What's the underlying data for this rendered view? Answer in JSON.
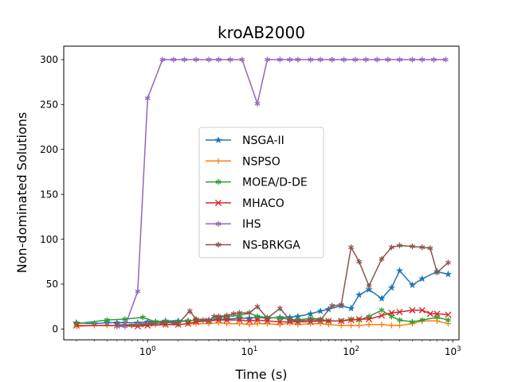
{
  "chart_data": {
    "type": "line",
    "title": "kroAB2000",
    "xlabel": "Time (s)",
    "ylabel": "Non-dominated Solutions",
    "xscale": "log",
    "xlim": [
      0.15,
      1150
    ],
    "ylim": [
      -12,
      315
    ],
    "x_ticks": [
      1,
      10,
      100,
      1000
    ],
    "x_tick_labels": [
      {
        "base": "10",
        "exp": "0"
      },
      {
        "base": "10",
        "exp": "1"
      },
      {
        "base": "10",
        "exp": "2"
      },
      {
        "base": "10",
        "exp": "3"
      }
    ],
    "y_ticks": [
      0,
      50,
      100,
      150,
      200,
      250,
      300
    ],
    "legend_position": "center",
    "grid": false,
    "series": [
      {
        "name": "NSGA-II",
        "color": "#1f77b4",
        "marker": "star",
        "points": [
          [
            0.2,
            7
          ],
          [
            0.3,
            6
          ],
          [
            0.4,
            7
          ],
          [
            0.5,
            7
          ],
          [
            0.6,
            7
          ],
          [
            0.8,
            7
          ],
          [
            1.0,
            8
          ],
          [
            1.2,
            8
          ],
          [
            1.5,
            9
          ],
          [
            2.0,
            9
          ],
          [
            2.5,
            9
          ],
          [
            3.0,
            10
          ],
          [
            4.0,
            10
          ],
          [
            5.0,
            11
          ],
          [
            6.0,
            11
          ],
          [
            8.0,
            12
          ],
          [
            10,
            12
          ],
          [
            12,
            13
          ],
          [
            15,
            12
          ],
          [
            20,
            13
          ],
          [
            25,
            13
          ],
          [
            30,
            14
          ],
          [
            40,
            17
          ],
          [
            50,
            20
          ],
          [
            60,
            22
          ],
          [
            80,
            26
          ],
          [
            100,
            23
          ],
          [
            120,
            38
          ],
          [
            150,
            44
          ],
          [
            200,
            34
          ],
          [
            250,
            46
          ],
          [
            300,
            65
          ],
          [
            400,
            49
          ],
          [
            500,
            56
          ],
          [
            700,
            64
          ],
          [
            900,
            61
          ]
        ]
      },
      {
        "name": "NSPSO",
        "color": "#ff7f0e",
        "marker": "plus",
        "points": [
          [
            0.2,
            3
          ],
          [
            0.3,
            4
          ],
          [
            0.4,
            4
          ],
          [
            0.5,
            4
          ],
          [
            0.6,
            5
          ],
          [
            0.8,
            5
          ],
          [
            1.0,
            5
          ],
          [
            1.2,
            5
          ],
          [
            1.5,
            5
          ],
          [
            2.0,
            5
          ],
          [
            2.5,
            6
          ],
          [
            3.0,
            6
          ],
          [
            4.0,
            6
          ],
          [
            5.0,
            7
          ],
          [
            6.0,
            6
          ],
          [
            8.0,
            6
          ],
          [
            10,
            5
          ],
          [
            12,
            6
          ],
          [
            15,
            6
          ],
          [
            20,
            5
          ],
          [
            25,
            7
          ],
          [
            30,
            5
          ],
          [
            40,
            6
          ],
          [
            50,
            6
          ],
          [
            60,
            5
          ],
          [
            80,
            4
          ],
          [
            100,
            4
          ],
          [
            120,
            4
          ],
          [
            150,
            5
          ],
          [
            200,
            5
          ],
          [
            250,
            4
          ],
          [
            300,
            4
          ],
          [
            400,
            6
          ],
          [
            500,
            9
          ],
          [
            700,
            9
          ],
          [
            900,
            6
          ]
        ]
      },
      {
        "name": "MOEA/D-DE",
        "color": "#2ca02c",
        "marker": "asterisk",
        "points": [
          [
            0.2,
            6
          ],
          [
            0.4,
            10
          ],
          [
            0.6,
            11
          ],
          [
            0.9,
            13
          ],
          [
            1.2,
            8
          ],
          [
            1.5,
            8
          ],
          [
            2.0,
            8
          ],
          [
            2.5,
            9
          ],
          [
            3.0,
            10
          ],
          [
            4.0,
            9
          ],
          [
            5.0,
            13
          ],
          [
            6.0,
            14
          ],
          [
            8.0,
            15
          ],
          [
            10,
            18
          ],
          [
            12,
            14
          ],
          [
            15,
            13
          ],
          [
            20,
            12
          ],
          [
            25,
            11
          ],
          [
            30,
            10
          ],
          [
            40,
            12
          ],
          [
            50,
            11
          ],
          [
            60,
            9
          ],
          [
            80,
            9
          ],
          [
            100,
            11
          ],
          [
            120,
            10
          ],
          [
            150,
            14
          ],
          [
            200,
            21
          ],
          [
            250,
            14
          ],
          [
            300,
            10
          ],
          [
            400,
            8
          ],
          [
            500,
            10
          ],
          [
            700,
            13
          ],
          [
            900,
            10
          ]
        ]
      },
      {
        "name": "MHACO",
        "color": "#d62728",
        "marker": "x",
        "points": [
          [
            0.2,
            4
          ],
          [
            0.5,
            4
          ],
          [
            0.8,
            3
          ],
          [
            1.0,
            4
          ],
          [
            1.5,
            5
          ],
          [
            2.0,
            5
          ],
          [
            2.5,
            6
          ],
          [
            3.0,
            8
          ],
          [
            4.0,
            9
          ],
          [
            5.0,
            10
          ],
          [
            6.0,
            10
          ],
          [
            8.0,
            10
          ],
          [
            10,
            9
          ],
          [
            12,
            10
          ],
          [
            15,
            9
          ],
          [
            20,
            8
          ],
          [
            25,
            8
          ],
          [
            30,
            8
          ],
          [
            40,
            8
          ],
          [
            50,
            9
          ],
          [
            60,
            9
          ],
          [
            80,
            9
          ],
          [
            100,
            10
          ],
          [
            120,
            11
          ],
          [
            150,
            11
          ],
          [
            200,
            15
          ],
          [
            250,
            18
          ],
          [
            300,
            19
          ],
          [
            400,
            21
          ],
          [
            500,
            21
          ],
          [
            600,
            17
          ],
          [
            700,
            17
          ],
          [
            900,
            16
          ]
        ]
      },
      {
        "name": "IHS",
        "color": "#9467bd",
        "marker": "asterisk",
        "points": [
          [
            0.5,
            3
          ],
          [
            0.6,
            3
          ],
          [
            0.8,
            42
          ],
          [
            1.0,
            257
          ],
          [
            1.4,
            300
          ],
          [
            1.8,
            300
          ],
          [
            2.3,
            300
          ],
          [
            3.0,
            300
          ],
          [
            4.0,
            300
          ],
          [
            5.0,
            300
          ],
          [
            6.5,
            300
          ],
          [
            8.5,
            300
          ],
          [
            12,
            251
          ],
          [
            15,
            300
          ],
          [
            20,
            300
          ],
          [
            25,
            300
          ],
          [
            30,
            300
          ],
          [
            40,
            300
          ],
          [
            50,
            300
          ],
          [
            65,
            300
          ],
          [
            85,
            300
          ],
          [
            110,
            300
          ],
          [
            140,
            300
          ],
          [
            180,
            300
          ],
          [
            230,
            300
          ],
          [
            300,
            300
          ],
          [
            400,
            300
          ],
          [
            500,
            300
          ],
          [
            650,
            300
          ],
          [
            850,
            300
          ]
        ]
      },
      {
        "name": "NS-BRKGA",
        "color": "#8c564b",
        "marker": "asterisk",
        "points": [
          [
            0.5,
            5
          ],
          [
            0.7,
            4
          ],
          [
            0.9,
            5
          ],
          [
            1.1,
            6
          ],
          [
            1.4,
            7
          ],
          [
            1.8,
            7
          ],
          [
            2.0,
            6
          ],
          [
            2.6,
            20
          ],
          [
            3.0,
            11
          ],
          [
            3.5,
            10
          ],
          [
            4.0,
            9
          ],
          [
            4.5,
            14
          ],
          [
            5.0,
            14
          ],
          [
            6.0,
            15
          ],
          [
            7.0,
            17
          ],
          [
            8.0,
            18
          ],
          [
            10,
            18
          ],
          [
            12,
            25
          ],
          [
            15,
            12
          ],
          [
            20,
            23
          ],
          [
            25,
            10
          ],
          [
            30,
            9
          ],
          [
            40,
            10
          ],
          [
            50,
            10
          ],
          [
            65,
            26
          ],
          [
            80,
            27
          ],
          [
            100,
            91
          ],
          [
            120,
            75
          ],
          [
            150,
            48
          ],
          [
            200,
            78
          ],
          [
            250,
            91
          ],
          [
            300,
            93
          ],
          [
            400,
            92
          ],
          [
            500,
            91
          ],
          [
            600,
            90
          ],
          [
            700,
            63
          ],
          [
            900,
            74
          ]
        ]
      }
    ]
  }
}
